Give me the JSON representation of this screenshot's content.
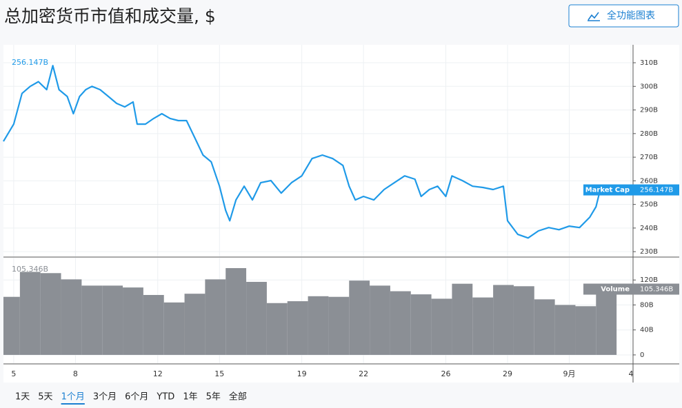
{
  "header": {
    "title": "总加密货币市值和成交量, $",
    "button": "全功能图表"
  },
  "chart_data": [
    {
      "type": "line",
      "x": [
        4.5,
        5.0,
        5.4,
        5.8,
        6.2,
        6.6,
        6.9,
        7.2,
        7.6,
        7.9,
        8.2,
        8.5,
        8.8,
        9.2,
        9.6,
        10.0,
        10.4,
        10.8,
        11.0,
        11.4,
        11.8,
        12.2,
        12.6,
        13.0,
        13.4,
        13.8,
        14.2,
        14.6,
        15.0,
        15.3,
        15.5,
        15.8,
        16.2,
        16.6,
        17.0,
        17.5,
        18.0,
        18.5,
        19.0,
        19.5,
        20.0,
        20.5,
        21.0,
        21.3,
        21.6,
        22.0,
        22.5,
        23.0,
        23.5,
        24.0,
        24.5,
        24.8,
        25.2,
        25.6,
        26.0,
        26.3,
        26.8,
        27.3,
        27.8,
        28.3,
        28.8,
        29.0,
        29.5,
        30.0,
        30.5,
        31.0,
        31.5,
        32.0,
        32.5,
        33.0,
        33.3,
        33.5
      ],
      "series": [
        {
          "name": "Market Cap",
          "color": "#1f9ae8",
          "last_label": "256.147B",
          "values": [
            276.7,
            284,
            297,
            300,
            302,
            298.6,
            308.8,
            298.6,
            295.7,
            288.4,
            295.7,
            298.6,
            300,
            298.6,
            295.7,
            292.8,
            291.3,
            293.4,
            284,
            284,
            286.4,
            288.4,
            286.4,
            285.5,
            285.5,
            278.2,
            270.9,
            268,
            257.7,
            247.5,
            243.1,
            251.9,
            257.7,
            251.9,
            259.2,
            260.1,
            254.8,
            259.2,
            262.1,
            269.4,
            270.9,
            269.4,
            266.5,
            257.7,
            251.9,
            253.4,
            251.9,
            256.3,
            259.2,
            262.1,
            260.7,
            253.4,
            256.3,
            257.7,
            253.4,
            262.1,
            260.1,
            257.7,
            257.2,
            256.3,
            257.7,
            243.1,
            237.3,
            235.8,
            238.8,
            240.2,
            239.3,
            240.8,
            240.2,
            244.6,
            249,
            256.147
          ]
        }
      ],
      "xlim": [
        4.5,
        35.1
      ],
      "ylim": [
        228,
        317.6
      ],
      "yticks": [
        {
          "value": 230,
          "label": "230B"
        },
        {
          "value": 240,
          "label": "240B"
        },
        {
          "value": 250,
          "label": "250B"
        },
        {
          "value": 260,
          "label": "260B"
        },
        {
          "value": 270,
          "label": "270B"
        },
        {
          "value": 280,
          "label": "280B"
        },
        {
          "value": 290,
          "label": "290B"
        },
        {
          "value": 300,
          "label": "300B"
        },
        {
          "value": 310,
          "label": "310B"
        }
      ],
      "grid": true
    },
    {
      "type": "bar",
      "x": [
        4.8,
        5.8,
        6.8,
        7.8,
        8.8,
        9.8,
        10.8,
        11.8,
        12.8,
        13.8,
        14.8,
        15.8,
        16.8,
        17.8,
        18.8,
        19.8,
        20.8,
        21.8,
        22.8,
        23.8,
        24.8,
        25.8,
        26.8,
        27.8,
        28.8,
        29.8,
        30.8,
        31.8,
        32.8,
        33.8
      ],
      "series": [
        {
          "name": "Volume",
          "color": "#8b8f95",
          "last_label": "105.346B",
          "values": [
            93,
            133,
            131,
            121,
            111,
            111,
            108,
            96,
            84,
            98,
            121,
            139,
            117,
            83,
            86,
            94,
            93,
            119,
            111,
            102,
            97,
            90,
            114,
            92,
            112,
            110,
            89,
            80,
            78,
            105.346
          ]
        }
      ],
      "xlim": [
        4.5,
        35.1
      ],
      "ylim": [
        -13.3,
        155.6
      ],
      "xticks": [
        5,
        8,
        12,
        15,
        19,
        22,
        26,
        29,
        {
          "value": 32,
          "label": "9月"
        },
        {
          "value": 35,
          "label": "4"
        }
      ],
      "yticks": [
        0,
        {
          "value": 40,
          "label": "40B"
        },
        {
          "value": 80,
          "label": "80B"
        },
        {
          "value": 120,
          "label": "120B"
        }
      ],
      "grid": true
    }
  ],
  "ranges": {
    "options": [
      "1天",
      "5天",
      "1个月",
      "3个月",
      "6个月",
      "YTD",
      "1年",
      "5年",
      "全部"
    ],
    "active": 2
  }
}
